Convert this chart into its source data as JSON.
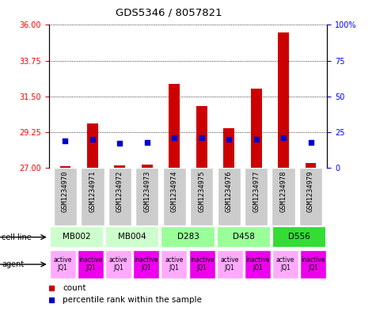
{
  "title": "GDS5346 / 8057821",
  "samples": [
    "GSM1234970",
    "GSM1234971",
    "GSM1234972",
    "GSM1234973",
    "GSM1234974",
    "GSM1234975",
    "GSM1234976",
    "GSM1234977",
    "GSM1234978",
    "GSM1234979"
  ],
  "bar_heights": [
    27.1,
    29.8,
    27.15,
    27.2,
    32.3,
    30.9,
    29.5,
    32.0,
    35.5,
    27.3
  ],
  "bar_base": 27,
  "percentile_values": [
    19,
    20,
    17,
    18,
    21,
    21,
    20,
    20,
    21,
    18
  ],
  "ylim_left": [
    27,
    36
  ],
  "ylim_right": [
    0,
    100
  ],
  "yticks_left": [
    27,
    29.25,
    31.5,
    33.75,
    36
  ],
  "yticks_right": [
    0,
    25,
    50,
    75,
    100
  ],
  "bar_color": "#cc0000",
  "percentile_color": "#0000cc",
  "cell_line_groups": [
    {
      "label": "MB002",
      "start": 0,
      "end": 1,
      "color": "#ccffcc"
    },
    {
      "label": "MB004",
      "start": 2,
      "end": 3,
      "color": "#ccffcc"
    },
    {
      "label": "D283",
      "start": 4,
      "end": 5,
      "color": "#99ff99"
    },
    {
      "label": "D458",
      "start": 6,
      "end": 7,
      "color": "#99ff99"
    },
    {
      "label": "D556",
      "start": 8,
      "end": 9,
      "color": "#33dd33"
    }
  ],
  "agent_active_color": "#ffaaff",
  "agent_inactive_color": "#ee00ee",
  "sample_box_color": "#cccccc",
  "label_fontsize": 7.5,
  "tick_fontsize": 7.0,
  "bar_width": 0.4
}
